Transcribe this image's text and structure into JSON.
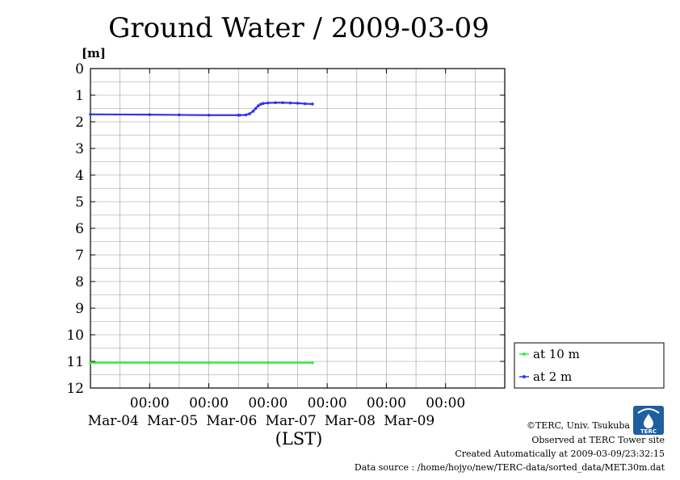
{
  "chart_data": {
    "type": "line",
    "title": "Ground Water / 2009-03-09",
    "ylabel": "[m]",
    "xlabel": "(LST)",
    "y_inverted": true,
    "ylim": [
      0,
      12
    ],
    "yticks": [
      "0",
      "1",
      "2",
      "3",
      "4",
      "5",
      "6",
      "7",
      "8",
      "9",
      "10",
      "11",
      "12"
    ],
    "xlim": [
      "2009-03-03 00:00",
      "2009-03-10 00:00"
    ],
    "xticks": [
      {
        "time": "00:00",
        "date": "Mar-04",
        "x": "2009-03-04 00:00"
      },
      {
        "time": "00:00",
        "date": "Mar-05",
        "x": "2009-03-05 00:00"
      },
      {
        "time": "00:00",
        "date": "Mar-06",
        "x": "2009-03-06 00:00"
      },
      {
        "time": "00:00",
        "date": "Mar-07",
        "x": "2009-03-07 00:00"
      },
      {
        "time": "00:00",
        "date": "Mar-08",
        "x": "2009-03-08 00:00"
      },
      {
        "time": "00:00",
        "date": "Mar-09",
        "x": "2009-03-09 00:00"
      }
    ],
    "grid": true,
    "legend_position": "bottom-right, outside plot",
    "series": [
      {
        "name": "at 10 m",
        "color": "#33ee33",
        "marker": "o",
        "points": [
          [
            "2009-03-03 00:00",
            11.05
          ],
          [
            "2009-03-04 00:00",
            11.05
          ],
          [
            "2009-03-05 00:00",
            11.05
          ],
          [
            "2009-03-06 00:00",
            11.05
          ],
          [
            "2009-03-06 18:00",
            11.05
          ]
        ]
      },
      {
        "name": "at 2 m",
        "color": "#3333ee",
        "marker": "o",
        "points": [
          [
            "2009-03-03 00:00",
            1.72
          ],
          [
            "2009-03-04 00:00",
            1.73
          ],
          [
            "2009-03-04 12:00",
            1.74
          ],
          [
            "2009-03-05 00:00",
            1.75
          ],
          [
            "2009-03-05 12:00",
            1.75
          ],
          [
            "2009-03-05 12:30",
            1.75
          ],
          [
            "2009-03-05 15:00",
            1.74
          ],
          [
            "2009-03-05 16:30",
            1.7
          ],
          [
            "2009-03-05 18:00",
            1.6
          ],
          [
            "2009-03-05 19:00",
            1.5
          ],
          [
            "2009-03-05 20:00",
            1.4
          ],
          [
            "2009-03-05 21:00",
            1.34
          ],
          [
            "2009-03-05 22:00",
            1.31
          ],
          [
            "2009-03-06 00:00",
            1.29
          ],
          [
            "2009-03-06 03:00",
            1.28
          ],
          [
            "2009-03-06 06:00",
            1.28
          ],
          [
            "2009-03-06 09:00",
            1.29
          ],
          [
            "2009-03-06 12:00",
            1.3
          ],
          [
            "2009-03-06 15:00",
            1.32
          ],
          [
            "2009-03-06 18:00",
            1.33
          ]
        ]
      }
    ]
  },
  "footer": {
    "copyright": "©TERC, Univ. Tsukuba",
    "observed": "Observed at TERC Tower site",
    "created": "Created Automatically at 2009-03-09/23:32:15",
    "source": "Data source : /home/hojyo/new/TERC-data/sorted_data/MET.30m.dat"
  },
  "logo": {
    "text": "TERC",
    "color": "#1e5fa0"
  }
}
